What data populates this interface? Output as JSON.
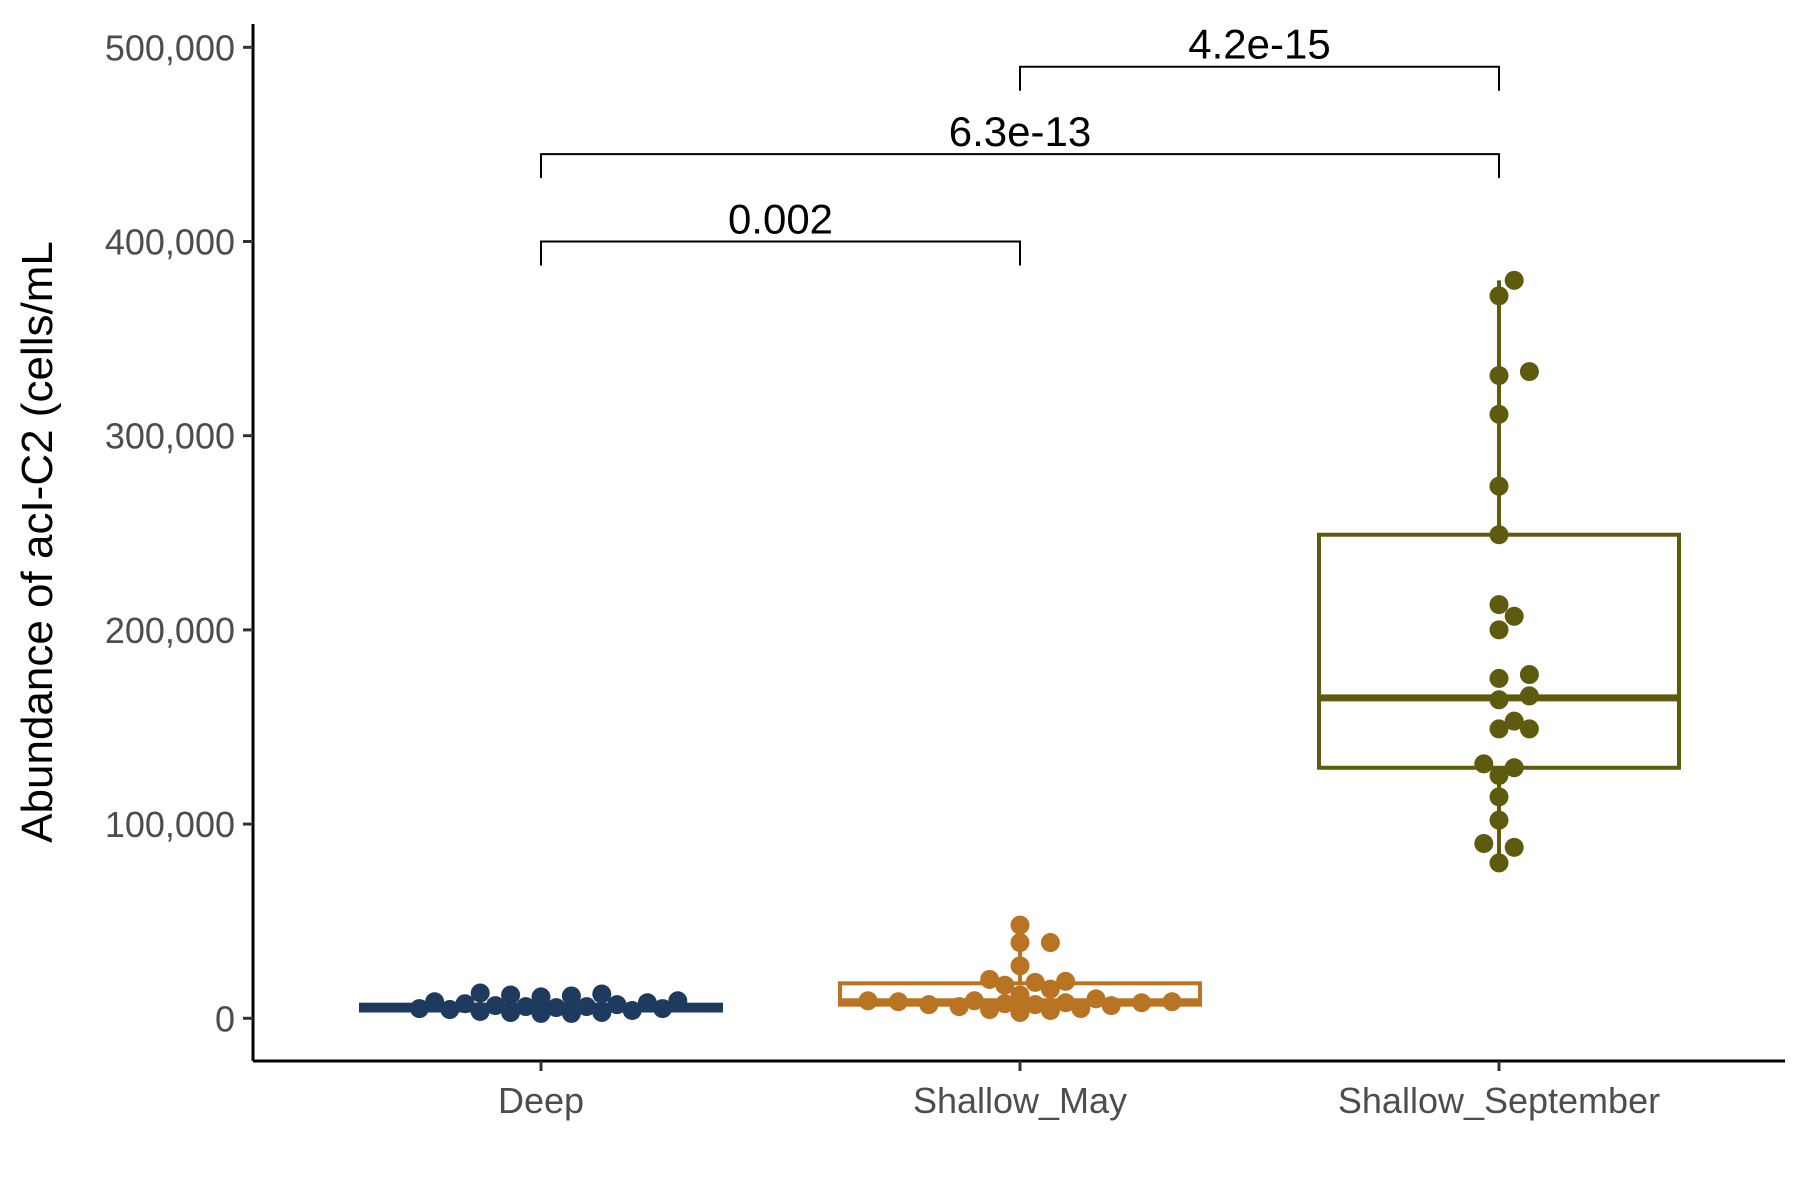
{
  "chart_data": {
    "type": "box",
    "title": "",
    "xlabel": "",
    "ylabel": "Abundance of acI-C2 (cells/mL",
    "ylim": [
      -22000,
      512000
    ],
    "y_ticks": [
      0,
      100000,
      200000,
      300000,
      400000,
      500000
    ],
    "y_tick_labels": [
      "0",
      "100,000",
      "200,000",
      "300,000",
      "400,000",
      "500,000"
    ],
    "categories": [
      "Deep",
      "Shallow_May",
      "Shallow_September"
    ],
    "grid": false,
    "legend": "none",
    "groups": [
      {
        "name": "Deep",
        "color": "#1f3a5f",
        "box": {
          "lower_whisker": 3000,
          "q1": 4000,
          "median": 5500,
          "q3": 7000,
          "upper_whisker": 13000
        },
        "points": [
          13000,
          12500,
          12000,
          11500,
          11000,
          9000,
          8500,
          8000,
          7500,
          7000,
          6500,
          6000,
          6000,
          5500,
          5000,
          5000,
          4500,
          4000,
          3500,
          3000,
          3000,
          2500,
          2500
        ]
      },
      {
        "name": "Shallow_May",
        "color": "#b87423",
        "box": {
          "lower_whisker": 3000,
          "q1": 7000,
          "median": 8500,
          "q3": 18000,
          "upper_whisker": 48000
        },
        "points": [
          48000,
          39000,
          39000,
          27000,
          20000,
          19000,
          18500,
          17000,
          15000,
          12000,
          10000,
          9000,
          9000,
          8500,
          8500,
          8000,
          8000,
          7500,
          7000,
          7000,
          6500,
          6000,
          5000,
          4500,
          4000,
          3000
        ]
      },
      {
        "name": "Shallow_September",
        "color": "#5e5a0e",
        "box": {
          "lower_whisker": 80000,
          "q1": 129000,
          "median": 165000,
          "q3": 249000,
          "upper_whisker": 380000
        },
        "points": [
          380000,
          372000,
          333000,
          331000,
          311000,
          274000,
          249000,
          213000,
          207000,
          200000,
          177000,
          175000,
          166000,
          164000,
          153000,
          149000,
          149000,
          131000,
          129000,
          125000,
          114000,
          102000,
          90000,
          88000,
          80000
        ]
      }
    ],
    "comparisons": [
      {
        "from": "Deep",
        "to": "Shallow_May",
        "label": "0.002",
        "y": 400000
      },
      {
        "from": "Deep",
        "to": "Shallow_September",
        "label": "6.3e-13",
        "y": 445000
      },
      {
        "from": "Shallow_May",
        "to": "Shallow_September",
        "label": "4.2e-15",
        "y": 490000
      }
    ]
  }
}
